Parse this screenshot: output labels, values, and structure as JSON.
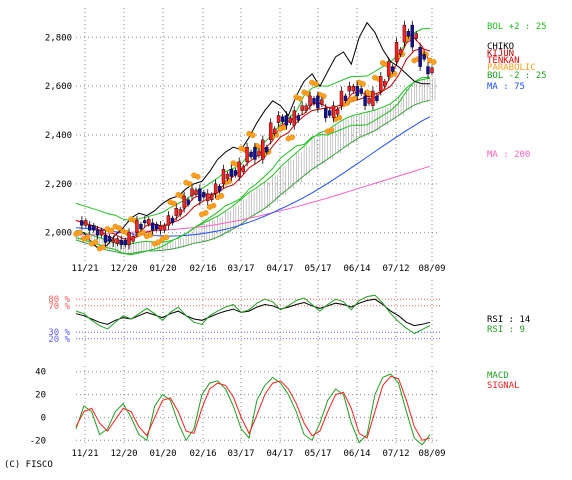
{
  "chart_data": [
    {
      "type": "line",
      "panel": "price",
      "x_labels": [
        "11/21",
        "12/20",
        "01/20",
        "02/16",
        "03/17",
        "04/17",
        "05/17",
        "06/14",
        "07/12",
        "08/09"
      ],
      "ylim": [
        1880,
        2920
      ],
      "yticks": [
        2000,
        2200,
        2400,
        2600,
        2800
      ],
      "ytick_labels": [
        "2,000",
        "2,200",
        "2,400",
        "2,600",
        "2,800"
      ],
      "grid": true,
      "legend_placement": "right",
      "series": [
        {
          "name": "MA : 200",
          "color": "#ff60c0",
          "values": [
            1990,
            1992,
            1993,
            1995,
            1996,
            1998,
            2000,
            2002,
            2004,
            2006,
            2008,
            2010,
            2012,
            2015,
            2018,
            2021,
            2025,
            2029,
            2034,
            2040,
            2046,
            2052,
            2059,
            2066,
            2074,
            2082,
            2090,
            2098,
            2106,
            2115,
            2124,
            2133,
            2142,
            2152,
            2162,
            2172,
            2182,
            2192,
            2202,
            2212,
            2222,
            2232,
            2242,
            2252,
            2262,
            2272
          ]
        },
        {
          "name": "MA : 75",
          "color": "#2050ff",
          "values": [
            2020,
            2018,
            2015,
            2012,
            2008,
            2004,
            2000,
            1996,
            1993,
            1990,
            1988,
            1987,
            1986,
            1987,
            1989,
            1992,
            1996,
            2001,
            2007,
            2014,
            2022,
            2032,
            2043,
            2055,
            2068,
            2082,
            2097,
            2112,
            2128,
            2145,
            2163,
            2182,
            2202,
            2223,
            2244,
            2266,
            2288,
            2310,
            2332,
            2354,
            2376,
            2397,
            2418,
            2438,
            2458,
            2475
          ]
        },
        {
          "name": "CHIKO",
          "color": "#000000",
          "values": [
            1990,
            2000,
            1960,
            1930,
            1950,
            1990,
            2020,
            2060,
            2080,
            2070,
            2090,
            2120,
            2140,
            2150,
            2180,
            2200,
            2210,
            2250,
            2300,
            2330,
            2350,
            2340,
            2390,
            2450,
            2500,
            2540,
            2520,
            2480,
            2560,
            2620,
            2650,
            2600,
            2660,
            2720,
            2740,
            2690,
            2800,
            2860,
            2820,
            2750,
            2700,
            2680,
            2650,
            2620,
            2610,
            2610
          ]
        },
        {
          "name": "Price",
          "color": "#000080",
          "values": [
            2050,
            2030,
            2010,
            1990,
            1960,
            1970,
            1950,
            2000,
            2050,
            2040,
            2010,
            2030,
            2070,
            2100,
            2150,
            2180,
            2130,
            2160,
            2200,
            2260,
            2230,
            2290,
            2350,
            2300,
            2380,
            2450,
            2480,
            2440,
            2500,
            2520,
            2560,
            2510,
            2470,
            2520,
            2580,
            2600,
            2560,
            2520,
            2580,
            2640,
            2700,
            2780,
            2850,
            2760,
            2680,
            2650
          ]
        }
      ],
      "indicators": [
        "BOL +2 : 25",
        "CHIKO",
        "KIJUN",
        "TENKAN",
        "PARABOLIC",
        "BOL -2 : 25",
        "MA : 75",
        "MA : 200"
      ]
    },
    {
      "type": "line",
      "panel": "rsi",
      "ylim": [
        0,
        100
      ],
      "levels": [
        80,
        70,
        30,
        20
      ],
      "level_labels": [
        "80 %",
        "70 %",
        "30 %",
        "20 %"
      ],
      "series": [
        {
          "name": "RSI : 14",
          "color": "#000000",
          "values": [
            58,
            55,
            50,
            45,
            42,
            48,
            52,
            50,
            55,
            60,
            56,
            52,
            58,
            62,
            55,
            50,
            48,
            53,
            58,
            62,
            65,
            60,
            62,
            68,
            72,
            70,
            65,
            68,
            72,
            75,
            70,
            66,
            70,
            74,
            72,
            68,
            74,
            78,
            80,
            72,
            62,
            55,
            45,
            40,
            42,
            45
          ]
        },
        {
          "name": "RSI : 9",
          "color": "#20a020",
          "values": [
            62,
            58,
            48,
            40,
            35,
            45,
            55,
            50,
            58,
            66,
            58,
            48,
            60,
            68,
            55,
            45,
            42,
            55,
            62,
            68,
            72,
            60,
            64,
            74,
            80,
            76,
            64,
            70,
            78,
            82,
            72,
            62,
            72,
            80,
            76,
            64,
            78,
            84,
            86,
            74,
            58,
            46,
            36,
            28,
            34,
            40
          ]
        }
      ]
    },
    {
      "type": "line",
      "panel": "macd",
      "ylim": [
        -25,
        45
      ],
      "yticks": [
        40,
        20,
        0,
        -20
      ],
      "ytick_labels": [
        "40",
        "20",
        "0",
        "-20"
      ],
      "series": [
        {
          "name": "MACD",
          "color": "#20a020",
          "values": [
            -10,
            10,
            5,
            -15,
            -10,
            5,
            12,
            0,
            -15,
            -20,
            10,
            20,
            15,
            -5,
            -20,
            -10,
            20,
            30,
            32,
            25,
            10,
            -10,
            -18,
            15,
            28,
            35,
            30,
            20,
            5,
            -15,
            -20,
            -5,
            15,
            25,
            20,
            -5,
            -22,
            -15,
            20,
            35,
            38,
            30,
            5,
            -18,
            -24,
            -15
          ]
        },
        {
          "name": "SIGNAL",
          "color": "#ff2020",
          "values": [
            -8,
            5,
            8,
            -5,
            -12,
            -2,
            8,
            5,
            -8,
            -16,
            0,
            15,
            17,
            5,
            -12,
            -14,
            8,
            25,
            30,
            28,
            18,
            0,
            -14,
            2,
            20,
            30,
            32,
            25,
            12,
            -5,
            -16,
            -12,
            5,
            20,
            22,
            8,
            -14,
            -18,
            5,
            28,
            36,
            34,
            15,
            -8,
            -20,
            -18
          ]
        }
      ]
    }
  ],
  "legend": {
    "bol_plus": "BOL +2 : 25",
    "chiko": "CHIKO",
    "kijun": "KIJUN",
    "tenkan": "TENKAN",
    "parabolic": "PARABOLIC",
    "bol_minus": "BOL -2 : 25",
    "ma75": "MA : 75",
    "ma200": "MA : 200",
    "rsi14": "RSI : 14",
    "rsi9": "RSI : 9",
    "macd": "MACD",
    "signal": "SIGNAL"
  },
  "colors": {
    "bol": "#20c020",
    "chiko": "#000000",
    "kijun": "#c00000",
    "tenkan": "#ff0000",
    "parabolic": "#ffa020",
    "ma75": "#2050ff",
    "ma200": "#ff60c0",
    "cloud": "#a0a0a0",
    "candle_up": "#ff2020",
    "candle_down": "#1010a0"
  },
  "copyright": "(C) FISCO"
}
